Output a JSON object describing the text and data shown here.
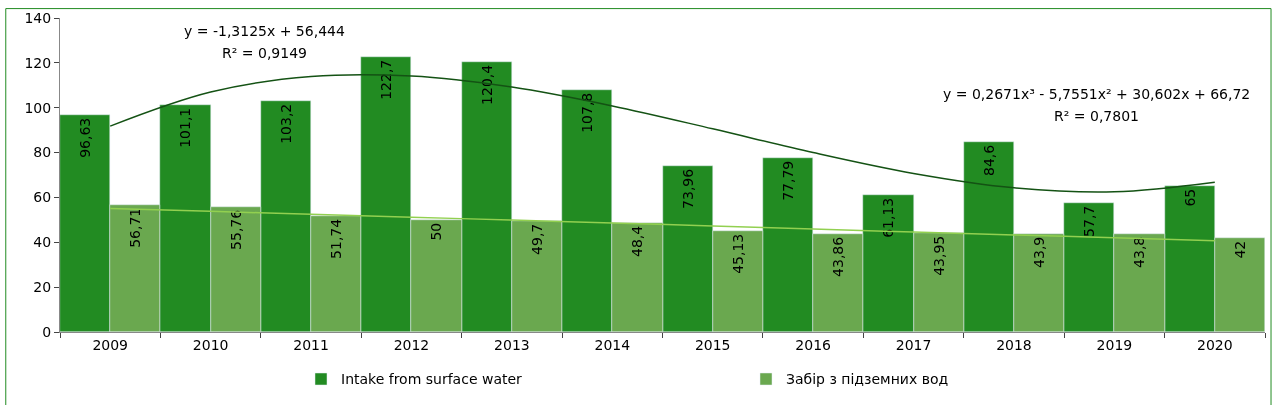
{
  "chart_data": {
    "type": "bar",
    "categories": [
      "2009",
      "2010",
      "2011",
      "2012",
      "2013",
      "2014",
      "2015",
      "2016",
      "2017",
      "2018",
      "2019",
      "2020"
    ],
    "series": [
      {
        "name": "Intake from surface water",
        "color": "#228b22",
        "values": [
          96.63,
          101.1,
          103.2,
          122.7,
          120.4,
          107.8,
          73.96,
          77.79,
          61.13,
          84.6,
          57.7,
          65
        ],
        "value_labels": [
          "96,63",
          "101,1",
          "103,2",
          "122,7",
          "120,4",
          "107,8",
          "73,96",
          "77,79",
          "61,13",
          "84,6",
          "57,7",
          "65"
        ]
      },
      {
        "name": "Забір з підземних вод",
        "color": "#6aa84f",
        "values": [
          56.71,
          55.76,
          51.74,
          50,
          49.7,
          48.4,
          45.13,
          43.86,
          43.95,
          43.9,
          43.8,
          42
        ],
        "value_labels": [
          "56,71",
          "55,76",
          "51,74",
          "50",
          "49,7",
          "48,4",
          "45,13",
          "43,86",
          "43,95",
          "43,9",
          "43,8",
          "42"
        ]
      },
      {
        "type": "line",
        "color": "#145214",
        "values": [
          91.8,
          107.0,
          113.9,
          114.1,
          109.2,
          100.8,
          90.6,
          80.0,
          70.7,
          64.3,
          62.5,
          66.8
        ]
      },
      {
        "type": "line",
        "color": "#92d050",
        "values": [
          55.1,
          53.8,
          52.5,
          51.2,
          49.9,
          48.6,
          47.3,
          45.9,
          44.6,
          43.3,
          42.0,
          40.7
        ]
      }
    ],
    "ylim": [
      0,
      140
    ],
    "yticks": [
      0,
      20,
      40,
      60,
      80,
      100,
      120,
      140
    ],
    "legend": "bottom",
    "annotations": [
      "y = -1,3125x + 56,444",
      "R² = 0,9149",
      "y = 0,2671x³ - 5,7551x² + 30,602x + 66,72",
      "R² = 0,7801"
    ]
  }
}
